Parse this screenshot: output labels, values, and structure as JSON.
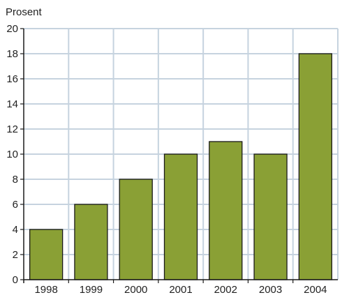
{
  "chart_data": {
    "type": "bar",
    "title": "",
    "xlabel": "",
    "ylabel": "Prosent",
    "categories": [
      "1998",
      "1999",
      "2000",
      "2001",
      "2002",
      "2003",
      "2004"
    ],
    "values": [
      4,
      6,
      8,
      10,
      11,
      10,
      18
    ],
    "ylim": [
      0,
      20
    ],
    "yticks": [
      "0",
      "2",
      "4",
      "6",
      "8",
      "10",
      "12",
      "14",
      "16",
      "18",
      "20"
    ],
    "grid": true,
    "bar_color": "#8aa035",
    "bar_edge_color": "#1a1a1a",
    "grid_color": "#c6d3df"
  }
}
